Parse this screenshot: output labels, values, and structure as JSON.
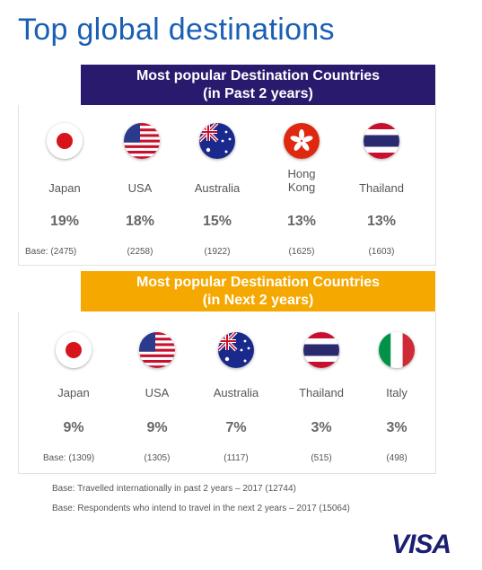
{
  "title": "Top global destinations",
  "section1": {
    "heading_line1": "Most popular Destination Countries",
    "heading_line2": "(in Past 2 years)",
    "base_prefix": "Base:",
    "items": [
      {
        "country": "Japan",
        "pct": "19%",
        "base": "(2475)",
        "flag": "japan-flag-icon"
      },
      {
        "country": "USA",
        "pct": "18%",
        "base": "(2258)",
        "flag": "usa-flag-icon"
      },
      {
        "country": "Australia",
        "pct": "15%",
        "base": "(1922)",
        "flag": "australia-flag-icon"
      },
      {
        "country": "Hong Kong",
        "pct": "13%",
        "base": "(1625)",
        "flag": "hong-kong-flag-icon"
      },
      {
        "country": "Thailand",
        "pct": "13%",
        "base": "(1603)",
        "flag": "thailand-flag-icon"
      }
    ]
  },
  "section2": {
    "heading_line1": "Most popular Destination Countries",
    "heading_line2": "(in Next 2 years)",
    "base_prefix": "Base:",
    "items": [
      {
        "country": "Japan",
        "pct": "9%",
        "base": "(1309)",
        "flag": "japan-flag-icon"
      },
      {
        "country": "USA",
        "pct": "9%",
        "base": "(1305)",
        "flag": "usa-flag-icon"
      },
      {
        "country": "Australia",
        "pct": "7%",
        "base": "(1117)",
        "flag": "australia-flag-icon"
      },
      {
        "country": "Thailand",
        "pct": "3%",
        "base": "(515)",
        "flag": "thailand-flag-icon"
      },
      {
        "country": "Italy",
        "pct": "3%",
        "base": "(498)",
        "flag": "italy-flag-icon"
      }
    ]
  },
  "notes": [
    "Base: Travelled internationally in past 2 years – 2017 (12744)",
    "Base: Respondents who intend to travel in the next 2 years – 2017 (15064)"
  ],
  "logo": "VISA",
  "colors": {
    "title": "#1a5fb4",
    "banner1": "#2a1a6e",
    "banner2": "#f5a800",
    "logo": "#1a1f71"
  }
}
